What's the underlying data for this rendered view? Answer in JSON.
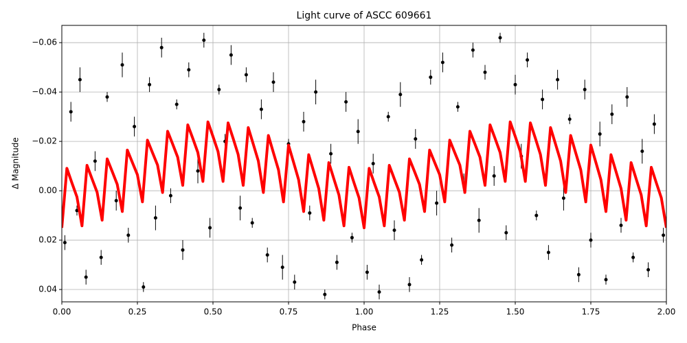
{
  "chart_data": {
    "type": "scatter",
    "title": "Light curve of ASCC 609661",
    "x_label": "Phase",
    "y_label": "Δ Magnitude",
    "xlim": [
      0,
      2
    ],
    "ylim": [
      0.045,
      -0.067
    ],
    "grid": true,
    "xticks": [
      {
        "value": 0,
        "label": "0.00"
      },
      {
        "value": 0.25,
        "label": "0.25"
      },
      {
        "value": 0.5,
        "label": "0.50"
      },
      {
        "value": 0.75,
        "label": "0.75"
      },
      {
        "value": 1,
        "label": "1.00"
      },
      {
        "value": 1.25,
        "label": "1.25"
      },
      {
        "value": 1.5,
        "label": "1.50"
      },
      {
        "value": 1.75,
        "label": "1.75"
      },
      {
        "value": 2,
        "label": "2.00"
      }
    ],
    "yticks": [
      {
        "value": -0.06,
        "label": "−0.06"
      },
      {
        "value": -0.04,
        "label": "−0.04"
      },
      {
        "value": -0.02,
        "label": "−0.02"
      },
      {
        "value": 0,
        "label": "0.00"
      },
      {
        "value": 0.02,
        "label": "0.02"
      },
      {
        "value": 0.04,
        "label": "0.04"
      }
    ],
    "series": [
      {
        "type": "errorbar",
        "color": "#000000",
        "x": [
          0.01,
          0.03,
          0.05,
          0.06,
          0.08,
          0.11,
          0.13,
          0.15,
          0.18,
          0.2,
          0.22,
          0.24,
          0.27,
          0.29,
          0.31,
          0.33,
          0.36,
          0.38,
          0.4,
          0.42,
          0.45,
          0.47,
          0.49,
          0.52,
          0.54,
          0.56,
          0.59,
          0.61,
          0.63,
          0.66,
          0.68,
          0.7,
          0.73,
          0.75,
          0.77,
          0.8,
          0.82,
          0.84,
          0.87,
          0.89,
          0.91,
          0.94,
          0.96,
          0.98,
          1.01,
          1.03,
          1.05,
          1.08,
          1.1,
          1.12,
          1.15,
          1.17,
          1.19,
          1.22,
          1.24,
          1.26,
          1.29,
          1.31,
          1.33,
          1.36,
          1.38,
          1.4,
          1.43,
          1.45,
          1.47,
          1.5,
          1.52,
          1.54,
          1.57,
          1.59,
          1.61,
          1.64,
          1.66,
          1.68,
          1.71,
          1.73,
          1.75,
          1.78,
          1.8,
          1.82,
          1.85,
          1.87,
          1.89,
          1.92,
          1.94,
          1.96,
          1.99
        ],
        "values": [
          0.021,
          -0.032,
          0.008,
          -0.045,
          0.035,
          -0.012,
          0.027,
          -0.038,
          0.004,
          -0.051,
          0.018,
          -0.026,
          0.039,
          -0.043,
          0.011,
          -0.058,
          0.002,
          -0.035,
          0.024,
          -0.049,
          -0.008,
          -0.061,
          0.015,
          -0.041,
          -0.02,
          -0.055,
          0.007,
          -0.047,
          0.013,
          -0.033,
          0.026,
          -0.044,
          0.031,
          -0.019,
          0.037,
          -0.028,
          0.009,
          -0.04,
          0.042,
          -0.015,
          0.029,
          -0.036,
          0.019,
          -0.024,
          0.033,
          -0.011,
          0.041,
          -0.03,
          0.016,
          -0.039,
          0.038,
          -0.021,
          0.028,
          -0.046,
          0.005,
          -0.052,
          0.022,
          -0.034,
          -0.003,
          -0.057,
          0.012,
          -0.048,
          -0.006,
          -0.062,
          0.017,
          -0.043,
          -0.014,
          -0.053,
          0.01,
          -0.037,
          0.025,
          -0.045,
          0.003,
          -0.029,
          0.034,
          -0.041,
          0.02,
          -0.023,
          0.036,
          -0.031,
          0.014,
          -0.038,
          0.027,
          -0.016,
          0.032,
          -0.027,
          0.018
        ],
        "yerr": [
          0.003,
          0.004,
          0.002,
          0.005,
          0.003,
          0.004,
          0.003,
          0.002,
          0.004,
          0.005,
          0.003,
          0.004,
          0.002,
          0.003,
          0.005,
          0.004,
          0.003,
          0.002,
          0.004,
          0.003,
          0.005,
          0.003,
          0.004,
          0.002,
          0.003,
          0.004,
          0.005,
          0.003,
          0.002,
          0.004,
          0.003,
          0.004,
          0.005,
          0.002,
          0.003,
          0.004,
          0.003,
          0.005,
          0.002,
          0.004,
          0.003,
          0.004,
          0.002,
          0.005,
          0.003,
          0.004,
          0.003,
          0.002,
          0.004,
          0.005,
          0.003,
          0.004,
          0.002,
          0.003,
          0.005,
          0.004,
          0.003,
          0.002,
          0.004,
          0.003,
          0.005,
          0.003,
          0.004,
          0.002,
          0.003,
          0.004,
          0.005,
          0.003,
          0.002,
          0.004,
          0.003,
          0.004,
          0.005,
          0.002,
          0.003,
          0.004,
          0.003,
          0.005,
          0.002,
          0.004,
          0.003,
          0.004,
          0.002,
          0.005,
          0.003,
          0.004,
          0.003
        ]
      },
      {
        "type": "line",
        "color": "#ff0000",
        "x": [
          0,
          0.0167,
          0.0333,
          0.05,
          0.0667,
          0.0833,
          0.1,
          0.1167,
          0.1333,
          0.15,
          0.1667,
          0.1833,
          0.2,
          0.2167,
          0.2333,
          0.25,
          0.2667,
          0.2833,
          0.3,
          0.3167,
          0.3333,
          0.35,
          0.3667,
          0.3833,
          0.4,
          0.4167,
          0.4333,
          0.45,
          0.4667,
          0.4833,
          0.5,
          0.5167,
          0.5333,
          0.55,
          0.5667,
          0.5833,
          0.6,
          0.6167,
          0.6333,
          0.65,
          0.6667,
          0.6833,
          0.7,
          0.7167,
          0.7333,
          0.75,
          0.7667,
          0.7833,
          0.8,
          0.8167,
          0.8333,
          0.85,
          0.8667,
          0.8833,
          0.9,
          0.9167,
          0.9333,
          0.95,
          0.9667,
          0.9833,
          1,
          1.0167,
          1.0333,
          1.05,
          1.0667,
          1.0833,
          1.1,
          1.1167,
          1.1333,
          1.15,
          1.1667,
          1.1833,
          1.2,
          1.2167,
          1.2333,
          1.25,
          1.2667,
          1.2833,
          1.3,
          1.3167,
          1.3333,
          1.35,
          1.3667,
          1.3833,
          1.4,
          1.4167,
          1.4333,
          1.45,
          1.4667,
          1.4833,
          1.5,
          1.5167,
          1.5333,
          1.55,
          1.5667,
          1.5833,
          1.6,
          1.6167,
          1.6333,
          1.65,
          1.6667,
          1.6833,
          1.7,
          1.7167,
          1.7333,
          1.75,
          1.7667,
          1.7833,
          1.8,
          1.8167,
          1.8333,
          1.85,
          1.8667,
          1.8833,
          1.9,
          1.9167,
          1.9333,
          1.95,
          1.9667,
          1.9833,
          2
        ],
        "values": [
          0.015,
          -0.0091,
          -0.0032,
          0.0025,
          0.0142,
          -0.0103,
          -0.0048,
          0.0006,
          0.0119,
          -0.0129,
          -0.0078,
          -0.0026,
          0.0084,
          -0.0165,
          -0.0115,
          -0.0065,
          0.0045,
          -0.0205,
          -0.0154,
          -0.0104,
          0.0007,
          -0.0241,
          -0.0189,
          -0.0136,
          -0.0022,
          -0.0267,
          -0.0212,
          -0.0155,
          -0.0038,
          -0.0279,
          -0.022,
          -0.0159,
          -0.0038,
          -0.0275,
          -0.0212,
          -0.0147,
          -0.0022,
          -0.0256,
          -0.0189,
          -0.0121,
          0.0007,
          -0.0224,
          -0.0154,
          -0.0085,
          0.0045,
          -0.0185,
          -0.0115,
          -0.0045,
          0.0084,
          -0.0146,
          -0.0078,
          -0.0009,
          0.0119,
          -0.0114,
          -0.0048,
          0.0017,
          0.0142,
          -0.0095,
          -0.0032,
          0.0029,
          0.015,
          -0.0091,
          -0.0032,
          0.0025,
          0.0142,
          -0.0103,
          -0.0048,
          0.0006,
          0.0119,
          -0.0129,
          -0.0078,
          -0.0026,
          0.0084,
          -0.0165,
          -0.0115,
          -0.0065,
          0.0045,
          -0.0205,
          -0.0154,
          -0.0104,
          0.0007,
          -0.0241,
          -0.0189,
          -0.0136,
          -0.0022,
          -0.0267,
          -0.0212,
          -0.0155,
          -0.0038,
          -0.0279,
          -0.022,
          -0.0159,
          -0.0038,
          -0.0275,
          -0.0212,
          -0.0147,
          -0.0022,
          -0.0256,
          -0.0189,
          -0.0121,
          0.0007,
          -0.0224,
          -0.0154,
          -0.0085,
          0.0045,
          -0.0185,
          -0.0115,
          -0.0045,
          0.0084,
          -0.0146,
          -0.0078,
          -0.0009,
          0.0119,
          -0.0114,
          -0.0048,
          0.0017,
          0.0142,
          -0.0095,
          -0.0032,
          0.0029,
          0.015
        ]
      }
    ]
  }
}
